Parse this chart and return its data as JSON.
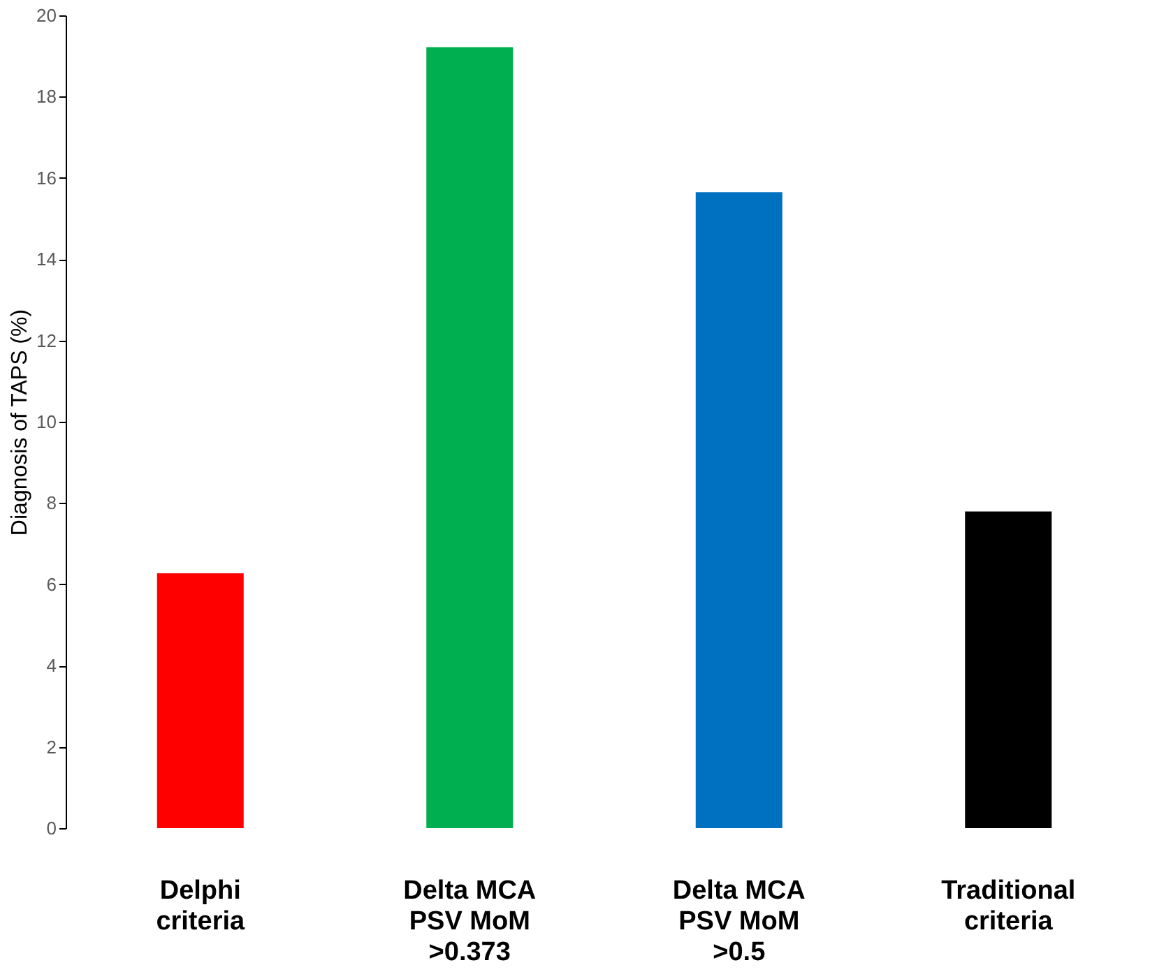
{
  "chart_data": {
    "type": "bar",
    "ylabel": "Diagnosis of TAPS (%)",
    "categories": [
      "Delphi\ncriteria",
      "Delta MCA\nPSV MoM\n>0.373",
      "Delta MCA\nPSV MoM\n>0.5",
      "Traditional\ncriteria"
    ],
    "values": [
      6.27,
      19.22,
      15.65,
      7.79
    ],
    "colors": [
      "#ff0000",
      "#00b050",
      "#0070c0",
      "#000000"
    ],
    "ylim": [
      0,
      20
    ],
    "yticks": [
      0,
      2,
      4,
      6,
      8,
      10,
      12,
      14,
      16,
      18,
      20
    ],
    "grid": false
  }
}
